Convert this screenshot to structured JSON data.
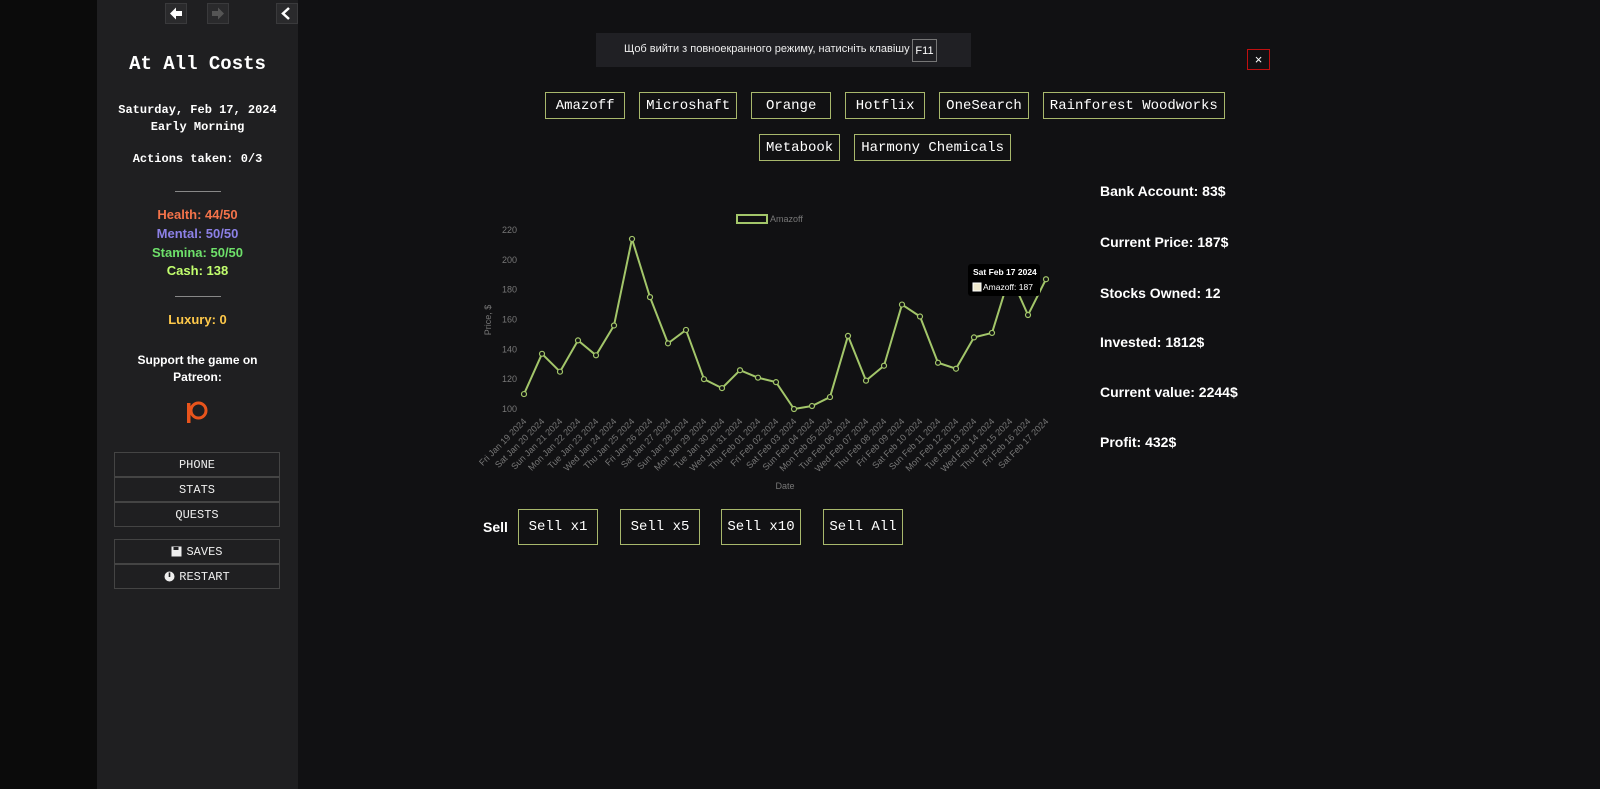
{
  "sidebar": {
    "title": "At All Costs",
    "date": "Saturday, Feb 17, 2024",
    "time": "Early Morning",
    "actions": "Actions taken: 0/3",
    "stats": [
      "Health: 44/50",
      "Mental: 50/50",
      "Stamina: 50/50",
      "Cash: 138"
    ],
    "luxury": "Luxury: 0",
    "support": "Support the game on Patreon:",
    "menu": [
      "PHONE",
      "STATS",
      "QUESTS"
    ],
    "system": [
      "SAVES",
      "RESTART"
    ]
  },
  "notice": {
    "text": "Щоб вийти з повноекранного режиму, натисніть клавішу",
    "key": "F11"
  },
  "close": "×",
  "tabs": [
    "Amazoff",
    "Microshaft",
    "Orange",
    "Hotflix",
    "OneSearch",
    "Rainforest Woodworks",
    "Metabook",
    "Harmony Chemicals"
  ],
  "chart_data": {
    "type": "line",
    "x_label": "Date",
    "y_label": "Price, $",
    "categories": [
      "Fri Jan 19 2024",
      "Sat Jan 20 2024",
      "Sun Jan 21 2024",
      "Mon Jan 22 2024",
      "Tue Jan 23 2024",
      "Wed Jan 24 2024",
      "Thu Jan 25 2024",
      "Fri Jan 26 2024",
      "Sat Jan 27 2024",
      "Sun Jan 28 2024",
      "Mon Jan 29 2024",
      "Tue Jan 30 2024",
      "Wed Jan 31 2024",
      "Thu Feb 01 2024",
      "Fri Feb 02 2024",
      "Sat Feb 03 2024",
      "Sun Feb 04 2024",
      "Mon Feb 05 2024",
      "Tue Feb 06 2024",
      "Wed Feb 07 2024",
      "Thu Feb 08 2024",
      "Fri Feb 09 2024",
      "Sat Feb 10 2024",
      "Sun Feb 11 2024",
      "Mon Feb 12 2024",
      "Tue Feb 13 2024",
      "Wed Feb 14 2024",
      "Thu Feb 15 2024",
      "Fri Feb 16 2024",
      "Sat Feb 17 2024"
    ],
    "series": [
      {
        "name": "Amazoff",
        "color": "#a3c66a",
        "values": [
          110,
          137,
          125,
          146,
          136,
          156,
          214,
          175,
          144,
          153,
          120,
          114,
          126,
          121,
          118,
          100,
          102,
          108,
          149,
          119,
          129,
          170,
          162,
          131,
          127,
          148,
          151,
          190,
          163,
          187
        ]
      }
    ],
    "ylim": [
      100,
      220
    ],
    "yticks": [
      100,
      120,
      140,
      160,
      180,
      200,
      220
    ],
    "tooltip": {
      "title": "Sat Feb 17 2024",
      "label": "Amazoff: 187"
    }
  },
  "stats": [
    "Bank Account: 83$",
    "Current Price: 187$",
    "Stocks Owned: 12",
    "Invested: 1812$",
    "Current value: 2244$",
    "Profit: 432$"
  ],
  "sell": {
    "label": "Sell",
    "buttons": [
      "Sell x1",
      "Sell x5",
      "Sell x10",
      "Sell All"
    ]
  }
}
